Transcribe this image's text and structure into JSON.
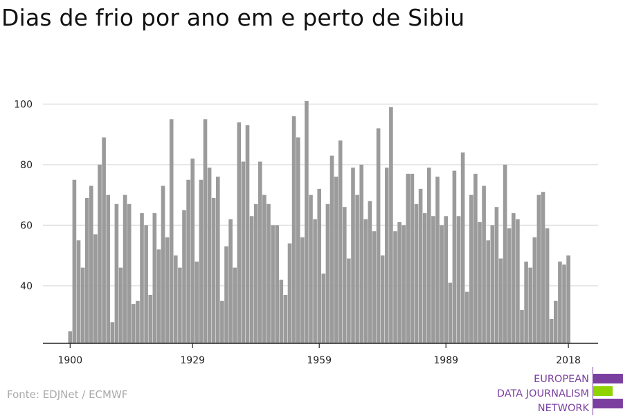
{
  "title": "Dias de frio por ano em e perto de Sibiu",
  "source": "Fonte: EDJNet / ECMWF",
  "logo": {
    "lines": [
      "EUROPEAN",
      "DATA JOURNALISM",
      "NETWORK"
    ],
    "colors": {
      "purple": "#7b3fa0",
      "green": "#8fd400"
    }
  },
  "colors": {
    "bar": "#9b9b9b",
    "grid": "#dddddd",
    "axis": "#222222"
  },
  "chart_data": {
    "type": "bar",
    "x_start": 1900,
    "x_end": 2018,
    "xticks": [
      1900,
      1929,
      1959,
      1989,
      2018
    ],
    "yticks": [
      40,
      60,
      80,
      100
    ],
    "ylim": [
      21,
      103
    ],
    "grid": true,
    "values": [
      25,
      75,
      55,
      46,
      69,
      73,
      57,
      80,
      89,
      70,
      28,
      67,
      46,
      70,
      67,
      34,
      35,
      64,
      60,
      37,
      64,
      52,
      73,
      56,
      95,
      50,
      46,
      65,
      75,
      82,
      48,
      75,
      95,
      79,
      69,
      76,
      35,
      53,
      62,
      46,
      94,
      81,
      93,
      63,
      67,
      81,
      70,
      67,
      60,
      60,
      42,
      37,
      54,
      96,
      89,
      56,
      101,
      70,
      62,
      72,
      44,
      67,
      83,
      76,
      88,
      66,
      49,
      79,
      70,
      80,
      62,
      68,
      58,
      92,
      50,
      79,
      99,
      58,
      61,
      60,
      77,
      77,
      67,
      72,
      64,
      79,
      63,
      76,
      60,
      63,
      41,
      78,
      63,
      84,
      38,
      70,
      77,
      61,
      73,
      55,
      60,
      66,
      49,
      80,
      59,
      64,
      62,
      32,
      48,
      46,
      56,
      70,
      71,
      59,
      29,
      35,
      48,
      47,
      50
    ]
  }
}
